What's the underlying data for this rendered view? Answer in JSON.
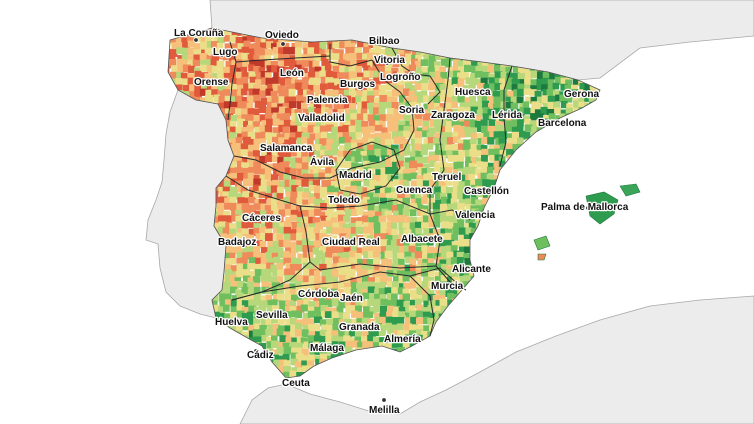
{
  "map": {
    "colors": {
      "sea": "#ffffff",
      "land_neighbor": "#ececec",
      "land_border": "#9a9a9a",
      "region_border": "#2a2a2a",
      "scale": [
        "#c0392b",
        "#e05a3c",
        "#ef8a5a",
        "#f6c07a",
        "#eadf88",
        "#b6d77a",
        "#6fbf5f",
        "#2e9b4e",
        "#1d7a3f"
      ]
    },
    "cities": [
      {
        "id": "la-coruna",
        "name": "La Coruña"
      },
      {
        "id": "oviedo",
        "name": "Oviedo"
      },
      {
        "id": "bilbao",
        "name": "Bilbao"
      },
      {
        "id": "lugo",
        "name": "Lugo"
      },
      {
        "id": "vitoria",
        "name": "Vitoria"
      },
      {
        "id": "leon",
        "name": "León"
      },
      {
        "id": "logrono",
        "name": "Logroño"
      },
      {
        "id": "burgos",
        "name": "Burgos"
      },
      {
        "id": "orense",
        "name": "Orense"
      },
      {
        "id": "huesca",
        "name": "Huesca"
      },
      {
        "id": "girona",
        "name": "Gerona"
      },
      {
        "id": "palencia",
        "name": "Palencia"
      },
      {
        "id": "soria",
        "name": "Soria"
      },
      {
        "id": "zaragoza",
        "name": "Zaragoza"
      },
      {
        "id": "lleida",
        "name": "Lérida"
      },
      {
        "id": "valladolid",
        "name": "Valladolid"
      },
      {
        "id": "barcelona",
        "name": "Barcelona"
      },
      {
        "id": "salamanca",
        "name": "Salamanca"
      },
      {
        "id": "avila",
        "name": "Ávila"
      },
      {
        "id": "madrid",
        "name": "Madrid"
      },
      {
        "id": "teruel",
        "name": "Teruel"
      },
      {
        "id": "cuenca",
        "name": "Cuenca"
      },
      {
        "id": "castellon",
        "name": "Castellón"
      },
      {
        "id": "toledo",
        "name": "Toledo"
      },
      {
        "id": "palma",
        "name": "Palma de Mallorca"
      },
      {
        "id": "caceres",
        "name": "Cáceres"
      },
      {
        "id": "valencia",
        "name": "Valencia"
      },
      {
        "id": "badajoz",
        "name": "Badajoz"
      },
      {
        "id": "ciudad-real",
        "name": "Ciudad Real"
      },
      {
        "id": "albacete",
        "name": "Albacete"
      },
      {
        "id": "alicante",
        "name": "Alicante"
      },
      {
        "id": "cordoba",
        "name": "Córdoba"
      },
      {
        "id": "murcia",
        "name": "Murcia"
      },
      {
        "id": "jaen",
        "name": "Jaén"
      },
      {
        "id": "huelva",
        "name": "Huelva"
      },
      {
        "id": "sevilla",
        "name": "Sevilla"
      },
      {
        "id": "granada",
        "name": "Granada"
      },
      {
        "id": "almeria",
        "name": "Almería"
      },
      {
        "id": "cadiz",
        "name": "Cádiz"
      },
      {
        "id": "malaga",
        "name": "Málaga"
      },
      {
        "id": "ceuta",
        "name": "Ceuta"
      },
      {
        "id": "melilla",
        "name": "Melilla"
      }
    ]
  }
}
